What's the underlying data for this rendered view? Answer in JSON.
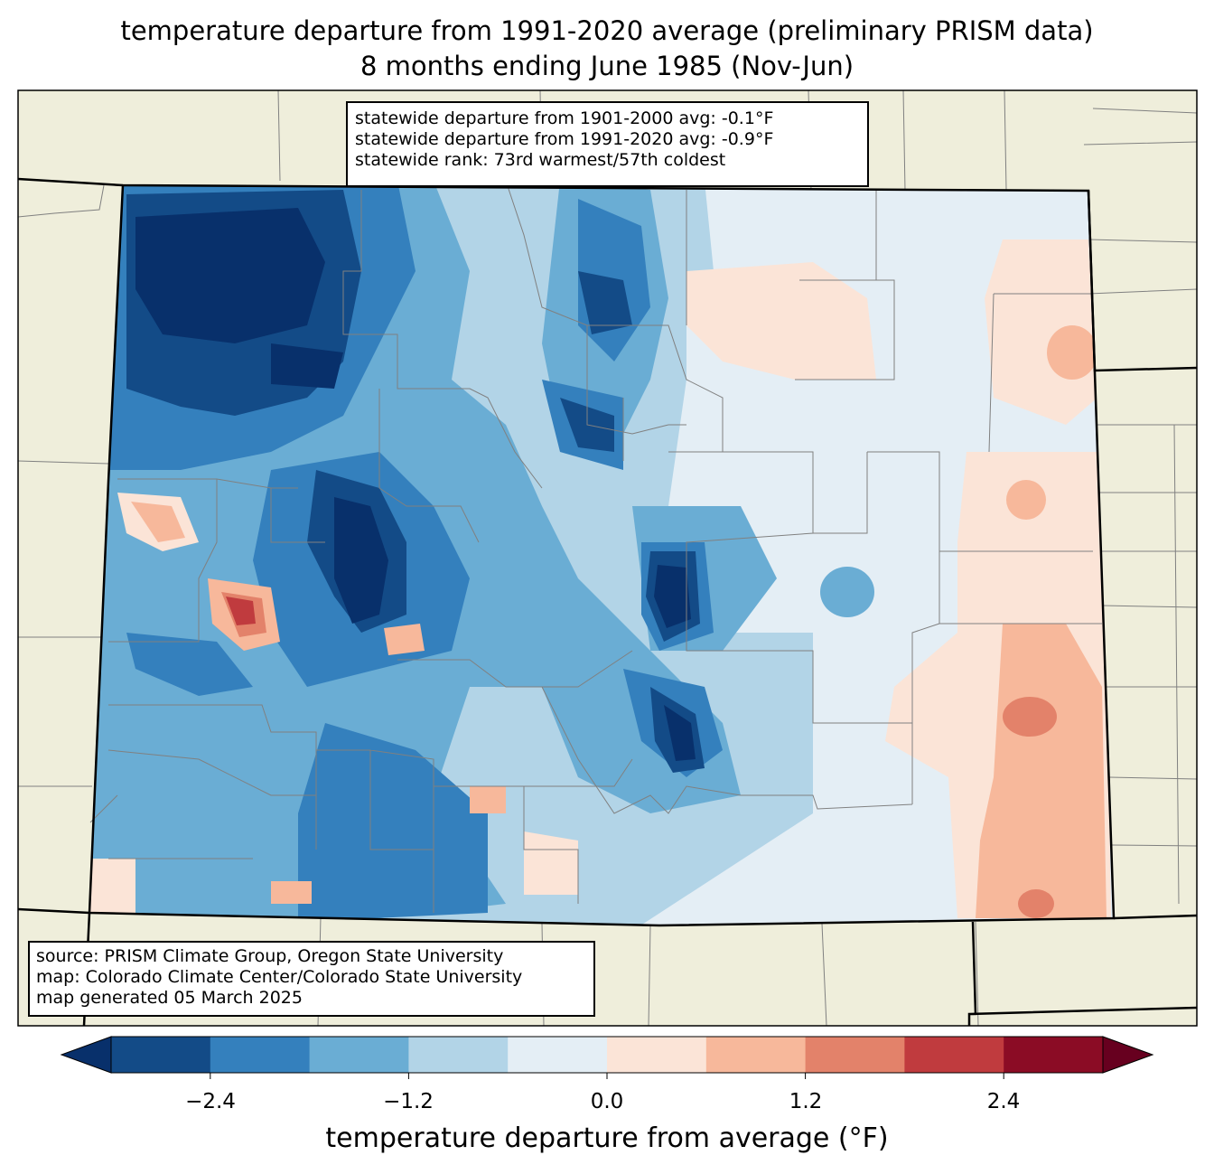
{
  "title": {
    "line1": "temperature departure from 1991-2020 average (preliminary PRISM data)",
    "line2": "8 months ending June 1985 (Nov-Jun)"
  },
  "stats_box": {
    "line1": "statewide departure from 1901-2000 avg: -0.1°F",
    "line2": "statewide departure from 1991-2020 avg: -0.9°F",
    "line3": "statewide rank: 73rd warmest/57th coldest"
  },
  "source_box": {
    "line1": "source: PRISM Climate Group, Oregon State University",
    "line2": "map: Colorado Climate Center/Colorado State University",
    "line3": "map generated 05 March 2025"
  },
  "colorbar": {
    "label": "temperature departure from average (°F)",
    "ticks": [
      "−2.4",
      "−1.2",
      "0.0",
      "1.2",
      "2.4"
    ],
    "bins": [
      -3.0,
      -2.4,
      -1.8,
      -1.2,
      -0.6,
      0.0,
      0.6,
      1.2,
      1.8,
      2.4,
      3.0
    ],
    "colors": [
      "#08306b",
      "#134b87",
      "#3480bd",
      "#6aadd4",
      "#b2d4e7",
      "#e4eef5",
      "#fbe4d7",
      "#f7b89b",
      "#e3826a",
      "#c03b3e",
      "#8b0c25",
      "#67001f"
    ]
  },
  "colors": {
    "land": "#efeedb",
    "state_border": "#000000",
    "county_border": "#808080"
  }
}
